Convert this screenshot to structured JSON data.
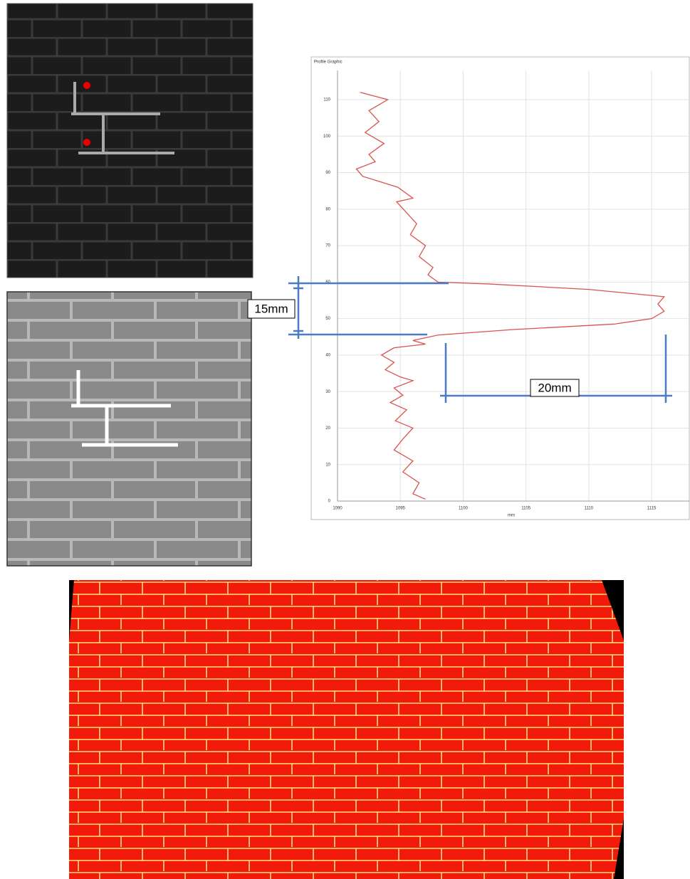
{
  "chart_data": {
    "type": "line",
    "title": "Profile Graphic",
    "x_label": "mm",
    "x": [
      1091.8,
      1094,
      1092.5,
      1093.3,
      1092.2,
      1093.7,
      1092.5,
      1093,
      1091.5,
      1092,
      1094.8,
      1096,
      1094.7,
      1095.5,
      1096.3,
      1095.8,
      1097,
      1096.5,
      1097.6,
      1097.2,
      1098,
      1102,
      1110,
      1113,
      1116,
      1115.5,
      1116,
      1115,
      1112,
      1104,
      1098,
      1096,
      1097,
      1094.5,
      1093.5,
      1094.5,
      1093.8,
      1095,
      1096,
      1094.5,
      1095.2,
      1094.2,
      1095.5,
      1094.6,
      1096,
      1095.2,
      1094.5,
      1096,
      1095.2,
      1096.5,
      1096,
      1097
    ],
    "values": [
      112,
      110,
      107,
      104,
      101,
      98,
      95,
      93,
      91,
      89,
      86,
      83,
      82,
      79,
      76,
      73,
      70,
      67,
      64,
      62,
      60,
      59.5,
      58,
      57,
      56,
      54,
      52,
      50,
      48.5,
      47,
      45.5,
      44,
      43,
      42,
      40,
      38,
      36,
      34,
      33,
      31,
      29,
      27,
      25,
      22,
      20,
      17,
      14,
      11,
      8,
      5,
      2,
      0.5
    ],
    "color": "#d9534f",
    "xlim": [
      1090,
      1118
    ],
    "xticks": [
      1090,
      1095,
      1100,
      1105,
      1110,
      1115
    ],
    "ylim": [
      0,
      118
    ],
    "yticks": [
      0,
      10,
      20,
      30,
      40,
      50,
      60,
      70,
      80,
      90,
      100,
      110
    ],
    "grid": true,
    "annotations": [
      "15mm",
      "20mm"
    ]
  }
}
